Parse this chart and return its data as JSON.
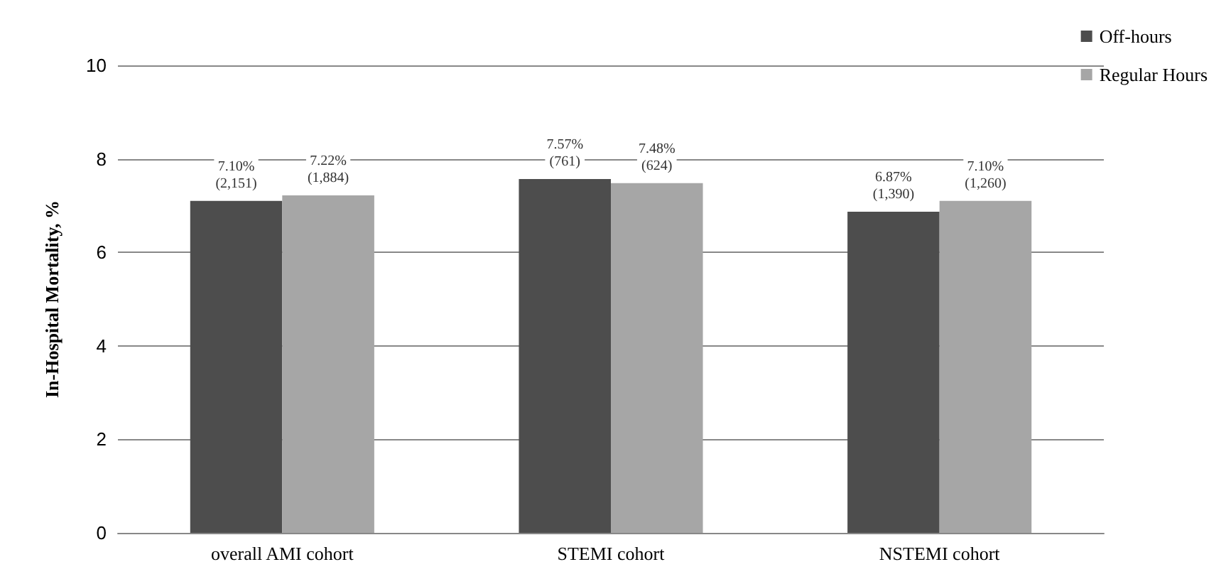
{
  "chart_data": {
    "type": "bar",
    "ylabel": "In-Hospital Mortality, %",
    "categories": [
      "overall AMI cohort",
      "STEMI cohort",
      "NSTEMI cohort"
    ],
    "series": [
      {
        "name": "Off-hours",
        "color": "#4d4d4d",
        "values": [
          7.1,
          7.57,
          6.87
        ],
        "value_labels": [
          "7.10%\n(2,151)",
          "7.57%\n(761)",
          "6.87%\n(1,390)"
        ]
      },
      {
        "name": "Regular Hours",
        "color": "#a6a6a6",
        "values": [
          7.22,
          7.48,
          7.1
        ],
        "value_labels": [
          "7.22%\n(1,884)",
          "7.48%\n(624)",
          "7.10%\n(1,260)"
        ]
      }
    ],
    "ylim": [
      0,
      10
    ],
    "yticks": [
      0,
      2,
      4,
      6,
      8,
      10
    ],
    "grid": "y",
    "legend": "top right"
  }
}
